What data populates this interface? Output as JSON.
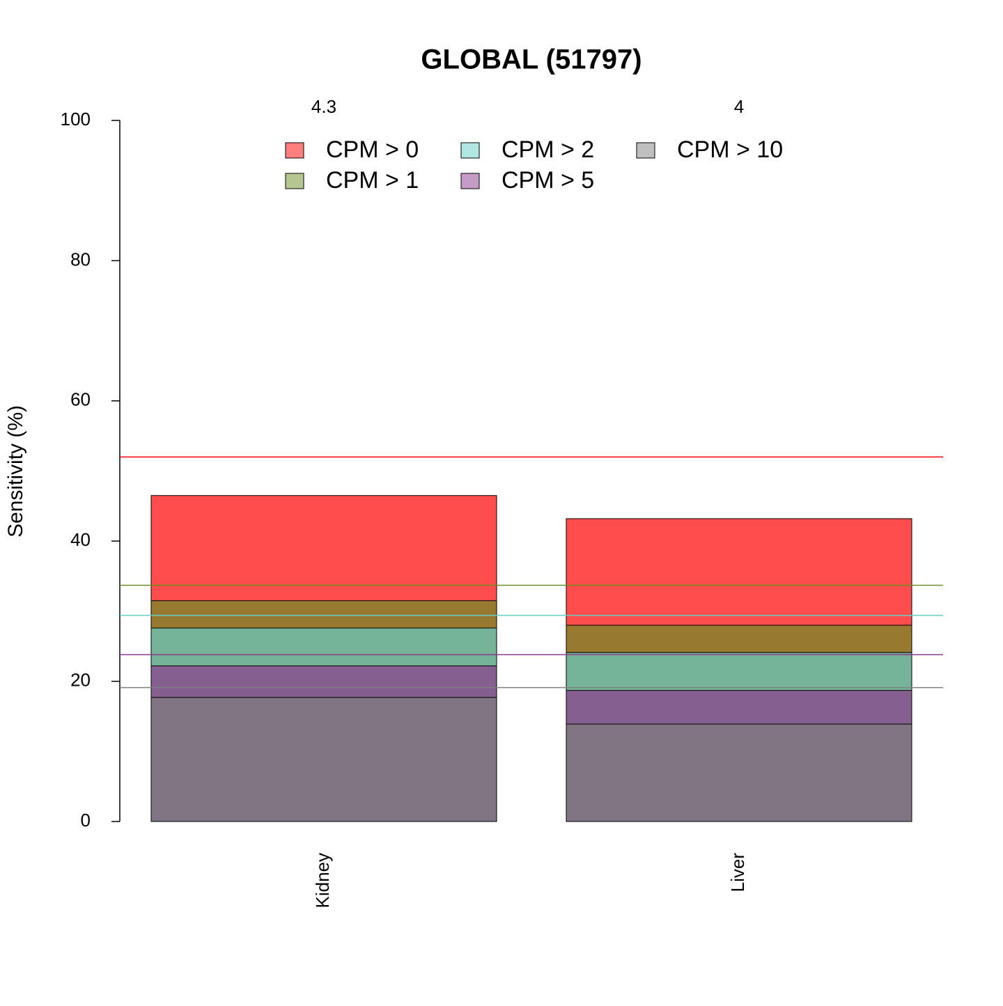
{
  "chart_data": {
    "type": "bar",
    "title": "GLOBAL (51797)",
    "y_label": "Sensitivity (%)",
    "categories": [
      "Kidney",
      "Liver"
    ],
    "annotations": [
      "4.3",
      "4"
    ],
    "series": [
      {
        "name": "CPM > 0",
        "color": "#ff0000",
        "values": [
          46.5,
          43.2
        ],
        "reference": 52.0
      },
      {
        "name": "CPM > 1",
        "color": "#6b8e23",
        "values": [
          31.5,
          28.0
        ],
        "reference": 33.7
      },
      {
        "name": "CPM > 2",
        "color": "#66cdc6",
        "values": [
          27.6,
          24.1
        ],
        "reference": 29.4
      },
      {
        "name": "CPM > 5",
        "color": "#8b3a8b",
        "values": [
          22.2,
          18.7
        ],
        "reference": 23.8
      },
      {
        "name": "CPM > 10",
        "color": "#7f7f7f",
        "values": [
          17.7,
          13.9
        ],
        "reference": 19.1
      }
    ],
    "ylim": [
      0,
      100
    ],
    "yticks": [
      0,
      20,
      40,
      60,
      80,
      100
    ]
  }
}
